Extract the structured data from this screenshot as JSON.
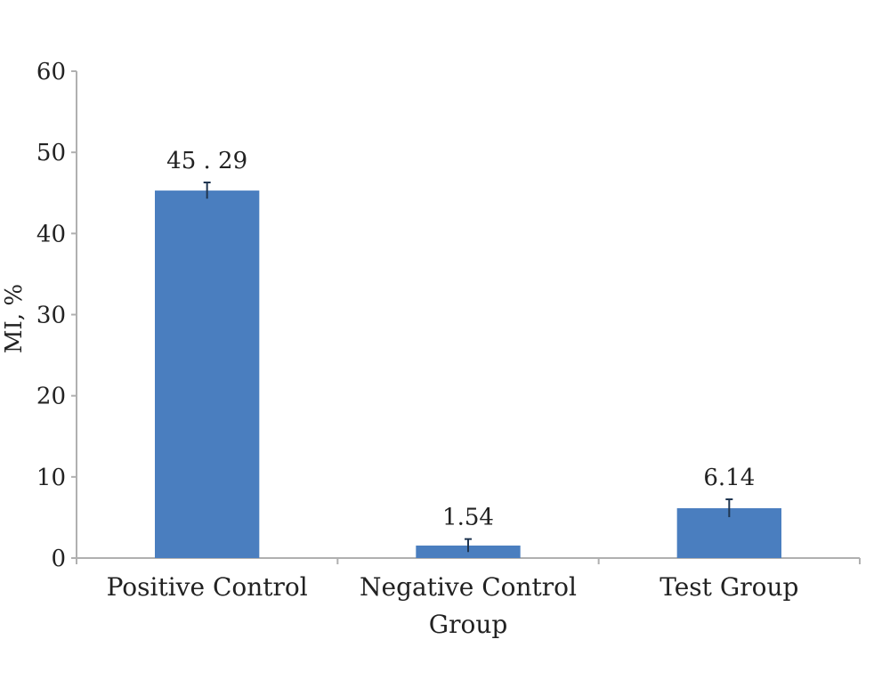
{
  "chart_data": {
    "type": "bar",
    "categories": [
      [
        "Positive Control"
      ],
      [
        "Negative Control",
        "Group"
      ],
      [
        "Test Group"
      ]
    ],
    "values": [
      45.29,
      1.54,
      6.14
    ],
    "data_labels": [
      "45 . 29",
      "1.54",
      "6.14"
    ],
    "error": [
      1.0,
      0.8,
      1.1
    ],
    "xlabel": "",
    "ylabel": "MI, %",
    "ylim": [
      0,
      60
    ],
    "yticks": [
      0,
      10,
      20,
      30,
      40,
      50,
      60
    ],
    "grid": false,
    "legend": "none",
    "bar_color": "#4a7ebf",
    "axis_color": "#b0b0b0",
    "error_color": "#1f3550"
  }
}
